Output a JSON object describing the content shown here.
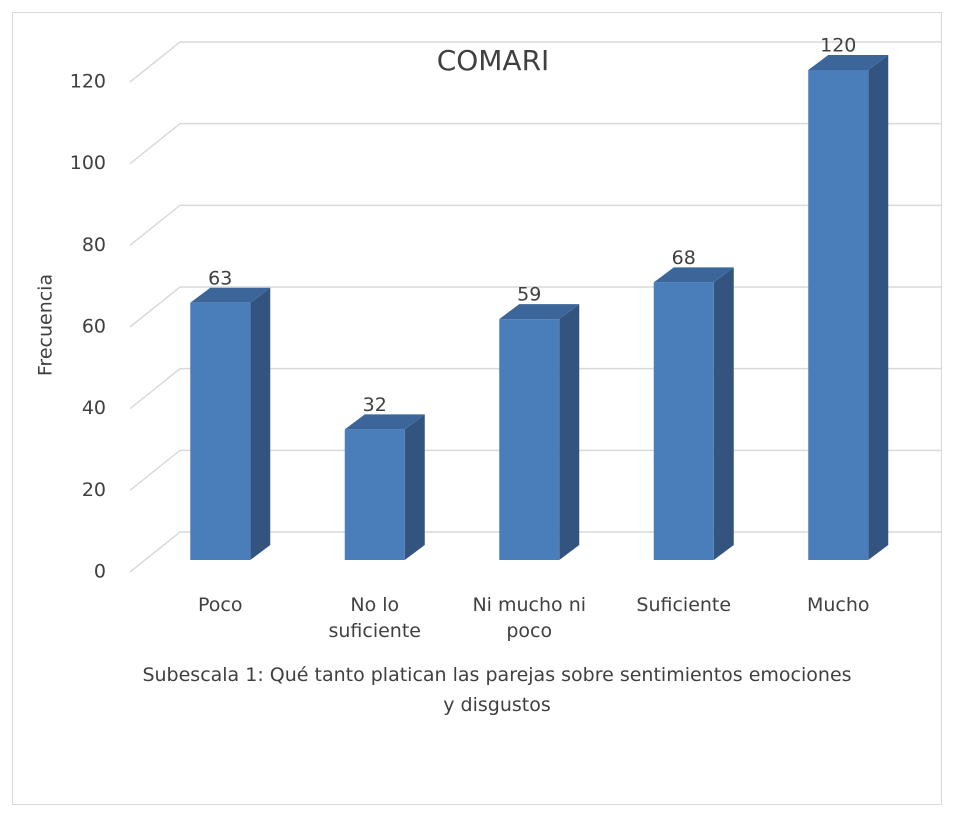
{
  "chart_data": {
    "type": "bar3d",
    "title": "COMARI",
    "categories": [
      "Poco",
      "No lo suficiente",
      "Ni mucho ni poco",
      "Suficiente",
      "Mucho"
    ],
    "values": [
      63,
      32,
      59,
      68,
      120
    ],
    "color": "#4a7ebb",
    "y_label": "Frecuencia",
    "x_label": "Subescala 1: Qué tanto platican las parejas sobre sentimientos emociones y disgustos",
    "ylim": [
      0,
      120
    ],
    "yticks": [
      0,
      20,
      40,
      60,
      80,
      100,
      120
    ],
    "grid": true
  }
}
